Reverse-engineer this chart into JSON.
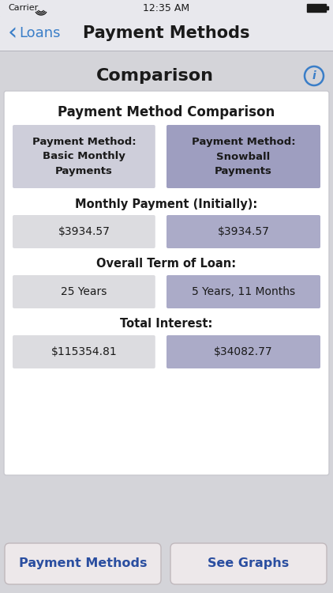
{
  "bg_color": "#d4d4d9",
  "nav_bg": "#e8e8ed",
  "status_bar_time": "12:35 AM",
  "nav_back_text": "Loans",
  "nav_title": "Payment Methods",
  "section_title": "Comparison",
  "info_icon_color": "#3a7ec8",
  "table_title": "Payment Method Comparison",
  "table_bg": "#ffffff",
  "table_border": "#c8c8ce",
  "col1_header": "Payment Method:\nBasic Monthly\nPayments",
  "col2_header": "Payment Method:\nSnowball\nPayments",
  "col1_header_bg": "#ceceda",
  "col2_header_bg": "#9e9ec0",
  "row1_label": "Monthly Payment (Initially):",
  "row1_col1": "$3934.57",
  "row1_col2": "$3934.57",
  "row2_label": "Overall Term of Loan:",
  "row2_col1": "25 Years",
  "row2_col2": "5 Years, 11 Months",
  "row3_label": "Total Interest:",
  "row3_col1": "$115354.81",
  "row3_col2": "$34082.77",
  "cell_col1_bg": "#dcdce0",
  "cell_col2_bg": "#ababc8",
  "label_color": "#1a1a1a",
  "btn1_text": "Payment Methods",
  "btn2_text": "See Graphs",
  "btn_bg": "#ede8ea",
  "btn_text_color": "#2a4ea0",
  "btn_border_color": "#c0b8bc",
  "separator_color": "#b0b0b8"
}
